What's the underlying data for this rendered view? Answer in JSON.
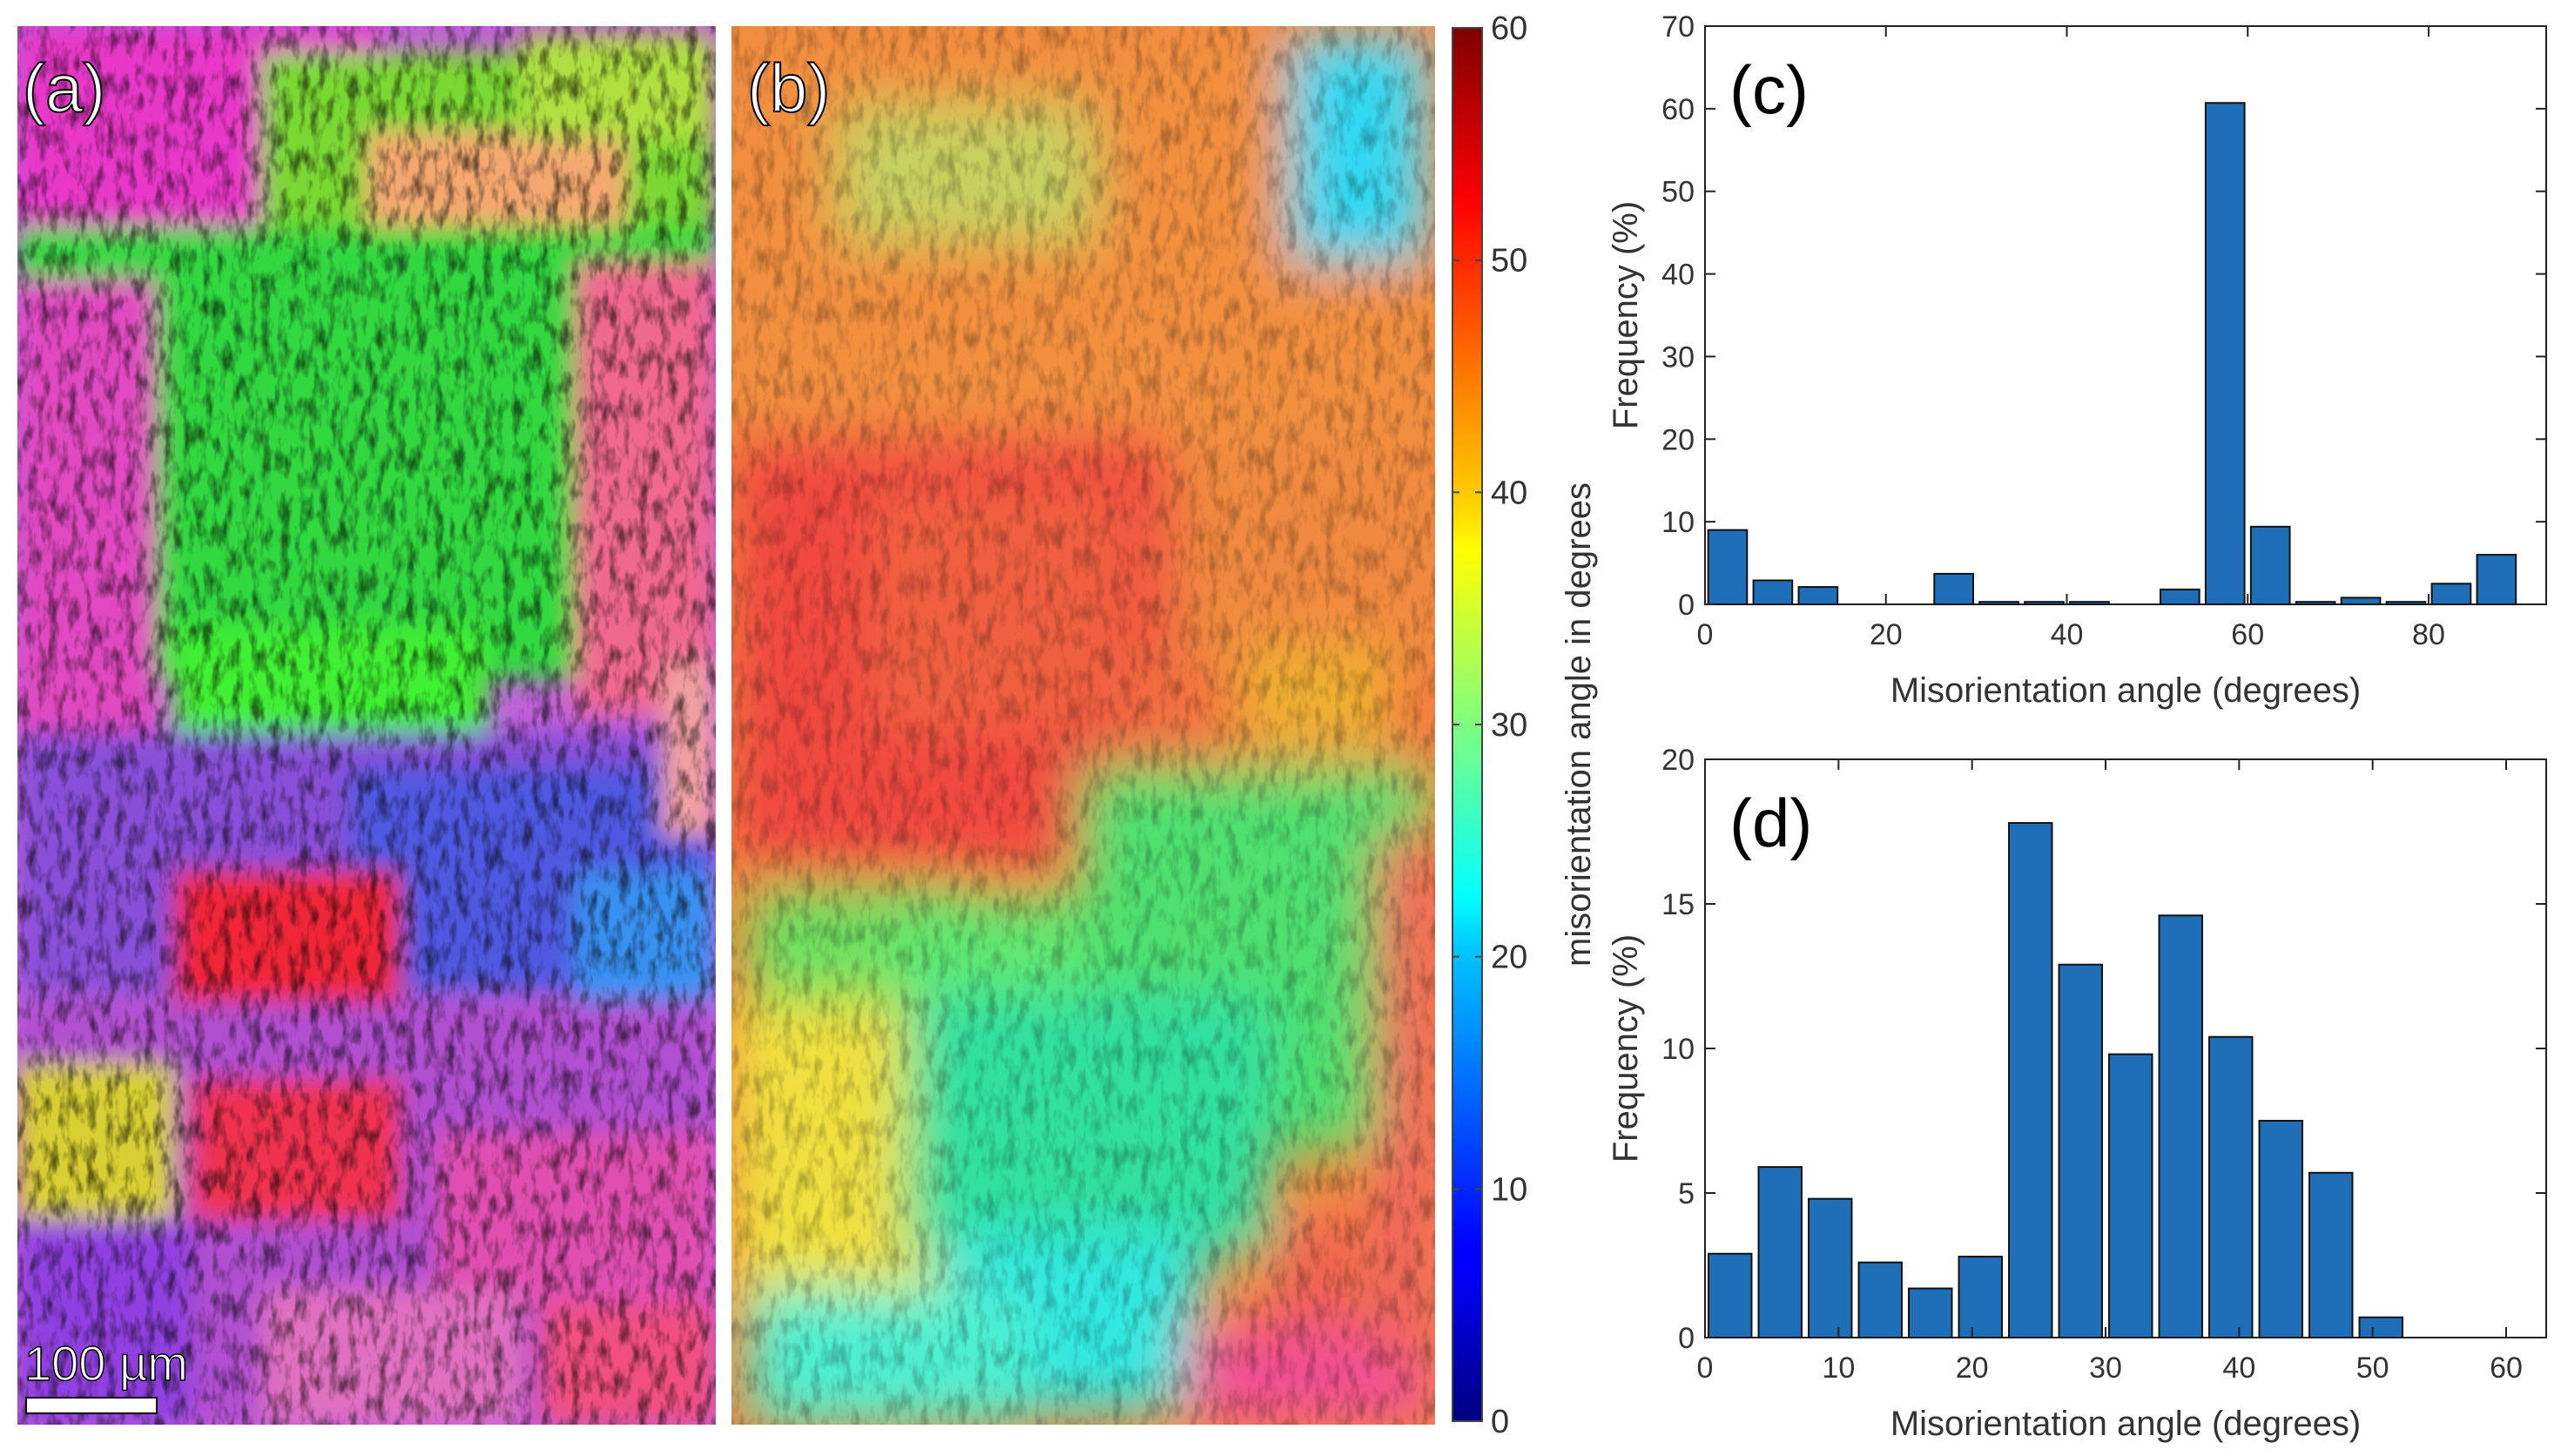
{
  "panels": {
    "a": {
      "label": "(a)",
      "scale_bar": "100 µm"
    },
    "b": {
      "label": "(b)"
    }
  },
  "colorbar": {
    "label": "misorientation angle in degrees",
    "ticks": [
      "0",
      "10",
      "20",
      "30",
      "40",
      "50",
      "60"
    ],
    "range": [
      0,
      60
    ]
  },
  "colors": {
    "bar": "#1f6fb8",
    "axis": "#222222",
    "text": "#333333"
  },
  "chart_data": [
    {
      "id": "c",
      "type": "bar",
      "panel_label": "(c)",
      "xlabel": "Misorientation angle (degrees)",
      "ylabel": "Frequency (%)",
      "xlim": [
        0,
        93
      ],
      "ylim": [
        0,
        70
      ],
      "xticks": [
        "0",
        "20",
        "40",
        "60",
        "80"
      ],
      "yticks": [
        "0",
        "10",
        "20",
        "30",
        "40",
        "50",
        "60",
        "70"
      ],
      "bin_width": 5,
      "x": [
        2.5,
        7.5,
        12.5,
        17.5,
        22.5,
        27.5,
        32.5,
        37.5,
        42.5,
        47.5,
        52.5,
        57.5,
        62.5,
        67.5,
        72.5,
        77.5,
        82.5,
        87.5,
        92.5
      ],
      "values": [
        9.0,
        2.9,
        2.1,
        0,
        0,
        3.7,
        0.3,
        0.3,
        0.3,
        0,
        1.8,
        60.7,
        9.4,
        0.3,
        0.8,
        0.3,
        2.5,
        6.0,
        0
      ]
    },
    {
      "id": "d",
      "type": "bar",
      "panel_label": "(d)",
      "xlabel": "Misorientation angle (degrees)",
      "ylabel": "Frequency (%)",
      "xlim": [
        0,
        63
      ],
      "ylim": [
        0,
        20
      ],
      "xticks": [
        "0",
        "10",
        "20",
        "30",
        "40",
        "50",
        "60"
      ],
      "yticks": [
        "0",
        "5",
        "10",
        "15",
        "20"
      ],
      "bin_width": 3.75,
      "x": [
        1.875,
        5.625,
        9.375,
        13.125,
        16.875,
        20.625,
        24.375,
        28.125,
        31.875,
        35.625,
        39.375,
        43.125,
        46.875,
        50.625,
        54.375,
        58.125,
        61.875
      ],
      "values": [
        2.9,
        5.9,
        4.8,
        2.6,
        1.7,
        2.8,
        17.8,
        12.9,
        9.8,
        14.6,
        10.4,
        7.5,
        5.7,
        0.7,
        0,
        0,
        0
      ]
    }
  ]
}
